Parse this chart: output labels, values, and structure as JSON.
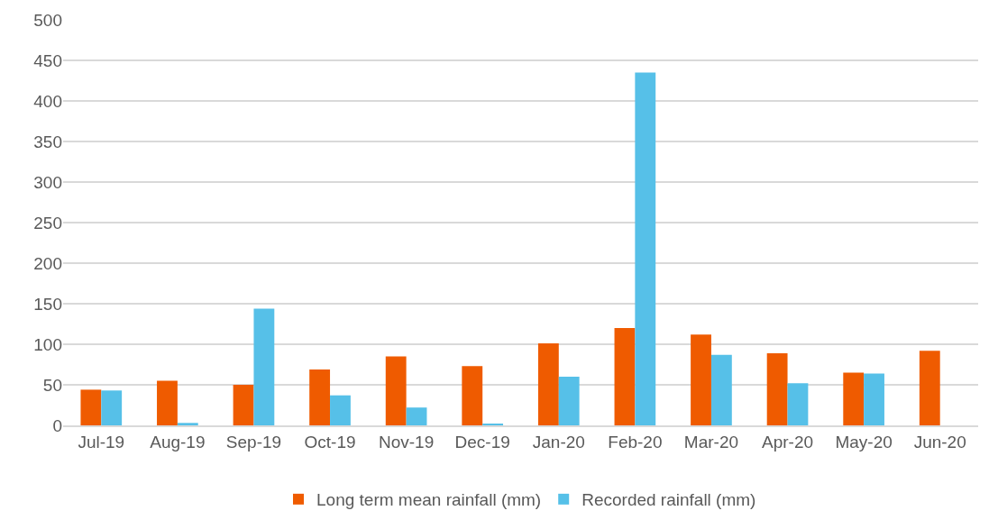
{
  "chart_data": {
    "type": "bar",
    "categories": [
      "Jul-19",
      "Aug-19",
      "Sep-19",
      "Oct-19",
      "Nov-19",
      "Dec-19",
      "Jan-20",
      "Feb-20",
      "Mar-20",
      "Apr-20",
      "May-20",
      "Jun-20"
    ],
    "series": [
      {
        "name": "Long term mean rainfall (mm)",
        "color": "#ef5b00",
        "values": [
          44,
          55,
          50,
          69,
          85,
          73,
          101,
          120,
          112,
          89,
          65,
          92
        ]
      },
      {
        "name": "Recorded rainfall (mm)",
        "color": "#56c0e8",
        "values": [
          43,
          3,
          144,
          37,
          22,
          2,
          60,
          435,
          87,
          52,
          64,
          0
        ]
      }
    ],
    "ylim": [
      0,
      500
    ],
    "yticks": [
      0,
      50,
      100,
      150,
      200,
      250,
      300,
      350,
      400,
      450,
      500
    ],
    "grid": "y",
    "legend": "bottom"
  }
}
